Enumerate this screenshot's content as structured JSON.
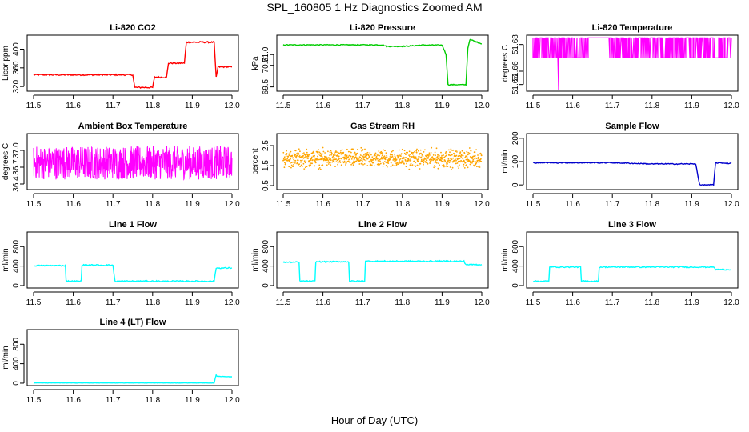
{
  "page": {
    "title": "SPL_160805  1 Hz Diagnostics Zoomed AM",
    "xlabel": "Hour of Day (UTC)"
  },
  "colors": {
    "red": "#ff0000",
    "green": "#00cc00",
    "magenta": "#ff00ff",
    "orange": "#ffa500",
    "blue": "#0000cc",
    "cyan": "#00ffff"
  },
  "chart_data": [
    {
      "type": "line",
      "title": "Li-820 CO2",
      "ylabel": "Licor ppm",
      "color": "#ff0000",
      "xlim": [
        11.5,
        12.0
      ],
      "ylim": [
        310,
        430
      ],
      "xticks": [
        "11.5",
        "11.6",
        "11.7",
        "11.8",
        "11.9",
        "12.0"
      ],
      "yticks": [
        320,
        360,
        400
      ],
      "series": [
        {
          "style": "step",
          "noise": 1.5,
          "x": [
            11.5,
            11.75,
            11.755,
            11.8,
            11.805,
            11.835,
            11.84,
            11.88,
            11.885,
            11.955,
            11.96,
            11.965,
            12.0
          ],
          "y": [
            345,
            345,
            318,
            318,
            340,
            340,
            370,
            370,
            415,
            415,
            340,
            362,
            362
          ]
        }
      ]
    },
    {
      "type": "line",
      "title": "Li-820 Pressure",
      "ylabel": "kPa",
      "color": "#00cc00",
      "xlim": [
        11.5,
        12.0
      ],
      "ylim": [
        69.3,
        71.9
      ],
      "xticks": [
        "11.5",
        "11.6",
        "11.7",
        "11.8",
        "11.9",
        "12.0"
      ],
      "yticks": [
        "69.5",
        "70.5",
        "71.0"
      ],
      "series": [
        {
          "style": "step",
          "noise": 0.02,
          "x": [
            11.5,
            11.75,
            11.76,
            11.8,
            11.85,
            11.9,
            11.91,
            11.915,
            11.96,
            11.965,
            11.97,
            12.0
          ],
          "y": [
            71.45,
            71.45,
            71.38,
            71.38,
            71.44,
            71.44,
            71.0,
            69.6,
            69.6,
            71.3,
            71.7,
            71.5
          ]
        }
      ]
    },
    {
      "type": "line",
      "title": "Li-820 Temperature",
      "ylabel": "degrees C",
      "color": "#ff00ff",
      "xlim": [
        11.5,
        12.0
      ],
      "ylim": [
        51.645,
        51.687
      ],
      "xticks": [
        "11.5",
        "11.6",
        "11.7",
        "11.8",
        "11.9",
        "12.0"
      ],
      "yticks": [
        "51.65",
        "51.66",
        "51.68"
      ],
      "levels": [
        51.67,
        51.685
      ],
      "dip": {
        "x": 11.565,
        "y": 51.646
      },
      "gap": [
        11.64,
        11.69
      ],
      "series": []
    },
    {
      "type": "line",
      "title": "Ambient Box Temperature",
      "ylabel": "degrees C",
      "color": "#ff00ff",
      "xlim": [
        11.5,
        12.0
      ],
      "ylim": [
        36.3,
        37.3
      ],
      "xticks": [
        "11.5",
        "11.6",
        "11.7",
        "11.8",
        "11.9",
        "12.0"
      ],
      "yticks": [
        "36.4",
        "36.7",
        "37.0"
      ],
      "noise_band": {
        "center": 36.78,
        "halfwidth": 0.3
      },
      "series": []
    },
    {
      "type": "scatter",
      "title": "Gas Stream RH",
      "ylabel": "percent",
      "color": "#ffa500",
      "xlim": [
        11.5,
        12.0
      ],
      "ylim": [
        0.3,
        3.1
      ],
      "xticks": [
        "11.5",
        "11.6",
        "11.7",
        "11.8",
        "11.9",
        "12.0"
      ],
      "yticks": [
        "0.5",
        "1.5",
        "2.5"
      ],
      "noise_band": {
        "center": 1.85,
        "halfwidth": 0.4
      },
      "series": []
    },
    {
      "type": "line",
      "title": "Sample Flow",
      "ylabel": "ml/min",
      "color": "#0000cc",
      "xlim": [
        11.5,
        12.0
      ],
      "ylim": [
        -20,
        220
      ],
      "xticks": [
        "11.5",
        "11.6",
        "11.7",
        "11.8",
        "11.9",
        "12.0"
      ],
      "yticks": [
        0,
        100,
        200
      ],
      "series": [
        {
          "style": "step",
          "noise": 2,
          "x": [
            11.5,
            11.7,
            11.8,
            11.91,
            11.92,
            11.955,
            11.96,
            12.0
          ],
          "y": [
            95,
            95,
            90,
            90,
            0,
            0,
            95,
            92
          ]
        }
      ]
    },
    {
      "type": "line",
      "title": "Line 1 Flow",
      "ylabel": "ml/min",
      "color": "#00ffff",
      "xlim": [
        11.5,
        12.0
      ],
      "ylim": [
        -50,
        1100
      ],
      "xticks": [
        "11.5",
        "11.6",
        "11.7",
        "11.8",
        "11.9",
        "12.0"
      ],
      "yticks": [
        0,
        400,
        800
      ],
      "series": [
        {
          "style": "step",
          "noise": 12,
          "x": [
            11.5,
            11.58,
            11.582,
            11.62,
            11.622,
            11.7,
            11.705,
            11.955,
            11.96,
            12.0
          ],
          "y": [
            410,
            410,
            90,
            90,
            420,
            420,
            90,
            90,
            360,
            360
          ]
        }
      ]
    },
    {
      "type": "line",
      "title": "Line 2 Flow",
      "ylabel": "ml/min",
      "color": "#00ffff",
      "xlim": [
        11.5,
        12.0
      ],
      "ylim": [
        -50,
        1100
      ],
      "xticks": [
        "11.5",
        "11.6",
        "11.7",
        "11.8",
        "11.9",
        "12.0"
      ],
      "yticks": [
        0,
        400,
        800
      ],
      "series": [
        {
          "style": "step",
          "noise": 12,
          "x": [
            11.5,
            11.54,
            11.542,
            11.58,
            11.582,
            11.665,
            11.667,
            11.705,
            11.707,
            11.955,
            11.96,
            12.0
          ],
          "y": [
            480,
            480,
            90,
            90,
            490,
            490,
            90,
            90,
            500,
            500,
            430,
            430
          ]
        }
      ]
    },
    {
      "type": "line",
      "title": "Line 3 Flow",
      "ylabel": "ml/min",
      "color": "#00ffff",
      "xlim": [
        11.5,
        12.0
      ],
      "ylim": [
        -50,
        1100
      ],
      "xticks": [
        "11.5",
        "11.6",
        "11.7",
        "11.8",
        "11.9",
        "12.0"
      ],
      "yticks": [
        0,
        400,
        800
      ],
      "series": [
        {
          "style": "step",
          "noise": 12,
          "x": [
            11.5,
            11.54,
            11.542,
            11.62,
            11.622,
            11.665,
            11.667,
            11.955,
            11.96,
            12.0
          ],
          "y": [
            90,
            90,
            380,
            380,
            90,
            90,
            380,
            380,
            330,
            330
          ]
        }
      ]
    },
    {
      "type": "line",
      "title": "Line 4 (LT) Flow",
      "ylabel": "ml/min",
      "color": "#00ffff",
      "xlim": [
        11.5,
        12.0
      ],
      "ylim": [
        -50,
        1100
      ],
      "xticks": [
        "11.5",
        "11.6",
        "11.7",
        "11.8",
        "11.9",
        "12.0"
      ],
      "yticks": [
        0,
        400,
        800
      ],
      "series": [
        {
          "style": "step",
          "noise": 3,
          "x": [
            11.5,
            11.955,
            11.96,
            11.962,
            12.0
          ],
          "y": [
            5,
            5,
            170,
            140,
            130
          ]
        }
      ]
    }
  ]
}
